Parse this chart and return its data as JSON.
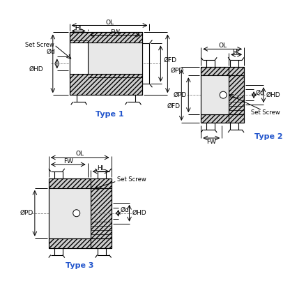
{
  "bg_color": "#ffffff",
  "line_color": "#000000",
  "blue_color": "#2255cc",
  "hatch": "/////",
  "hatch_face": "#cccccc",
  "light_face": "#e8e8e8",
  "title1": "Type 1",
  "title2": "Type 2",
  "title3": "Type 3",
  "lbl_OL": "OL",
  "lbl_HL": "HL",
  "lbl_FW": "FW",
  "lbl_OFD": "ØFD",
  "lbl_OPD": "ØPD",
  "lbl_OHD": "ØHD",
  "lbl_Od": "Ød",
  "lbl_SetScrew": "Set Screw"
}
